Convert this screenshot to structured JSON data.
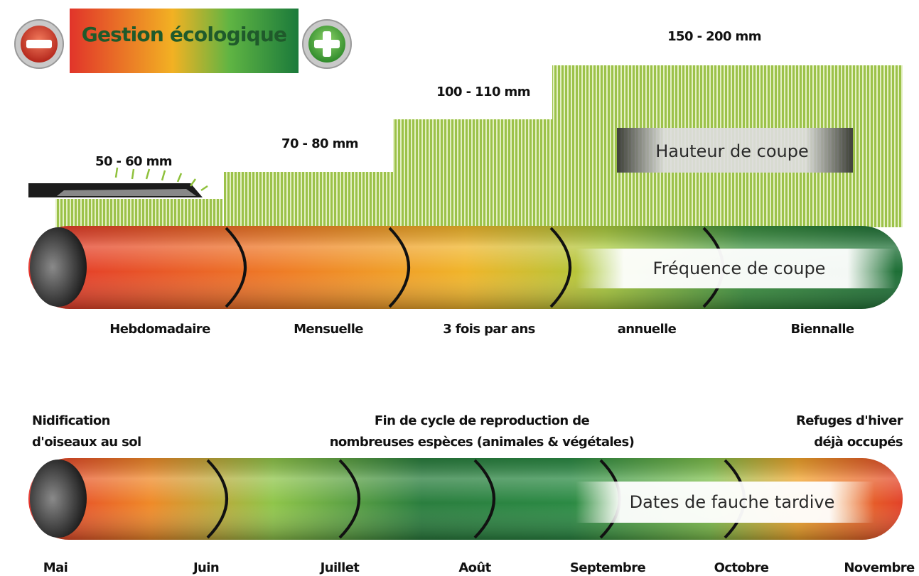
{
  "header": {
    "title": "Gestion écologique"
  },
  "cutting_heights": [
    "50 - 60 mm",
    "70 - 80 mm",
    "100 - 110 mm",
    "150 - 200 mm"
  ],
  "cutting_height_label": "Hauteur de coupe",
  "frequency": {
    "label": "Fréquence de coupe",
    "levels": [
      "Hebdomadaire",
      "Mensuelle",
      "3 fois par ans",
      "annuelle",
      "Biennalle"
    ]
  },
  "late_mowing": {
    "label": "Dates de fauche tardive",
    "notes": [
      {
        "lines": [
          "Nidification",
          "d'oiseaux au sol"
        ]
      },
      {
        "lines": [
          "Fin de cycle de reproduction de",
          "nombreuses espèces (animales & végétales)"
        ]
      },
      {
        "lines": [
          "Refuges d'hiver",
          "déjà occupés"
        ]
      }
    ],
    "months": [
      "Mai",
      "Juin",
      "Juillet",
      "Août",
      "Septembre",
      "Octobre",
      "Novembre"
    ]
  }
}
